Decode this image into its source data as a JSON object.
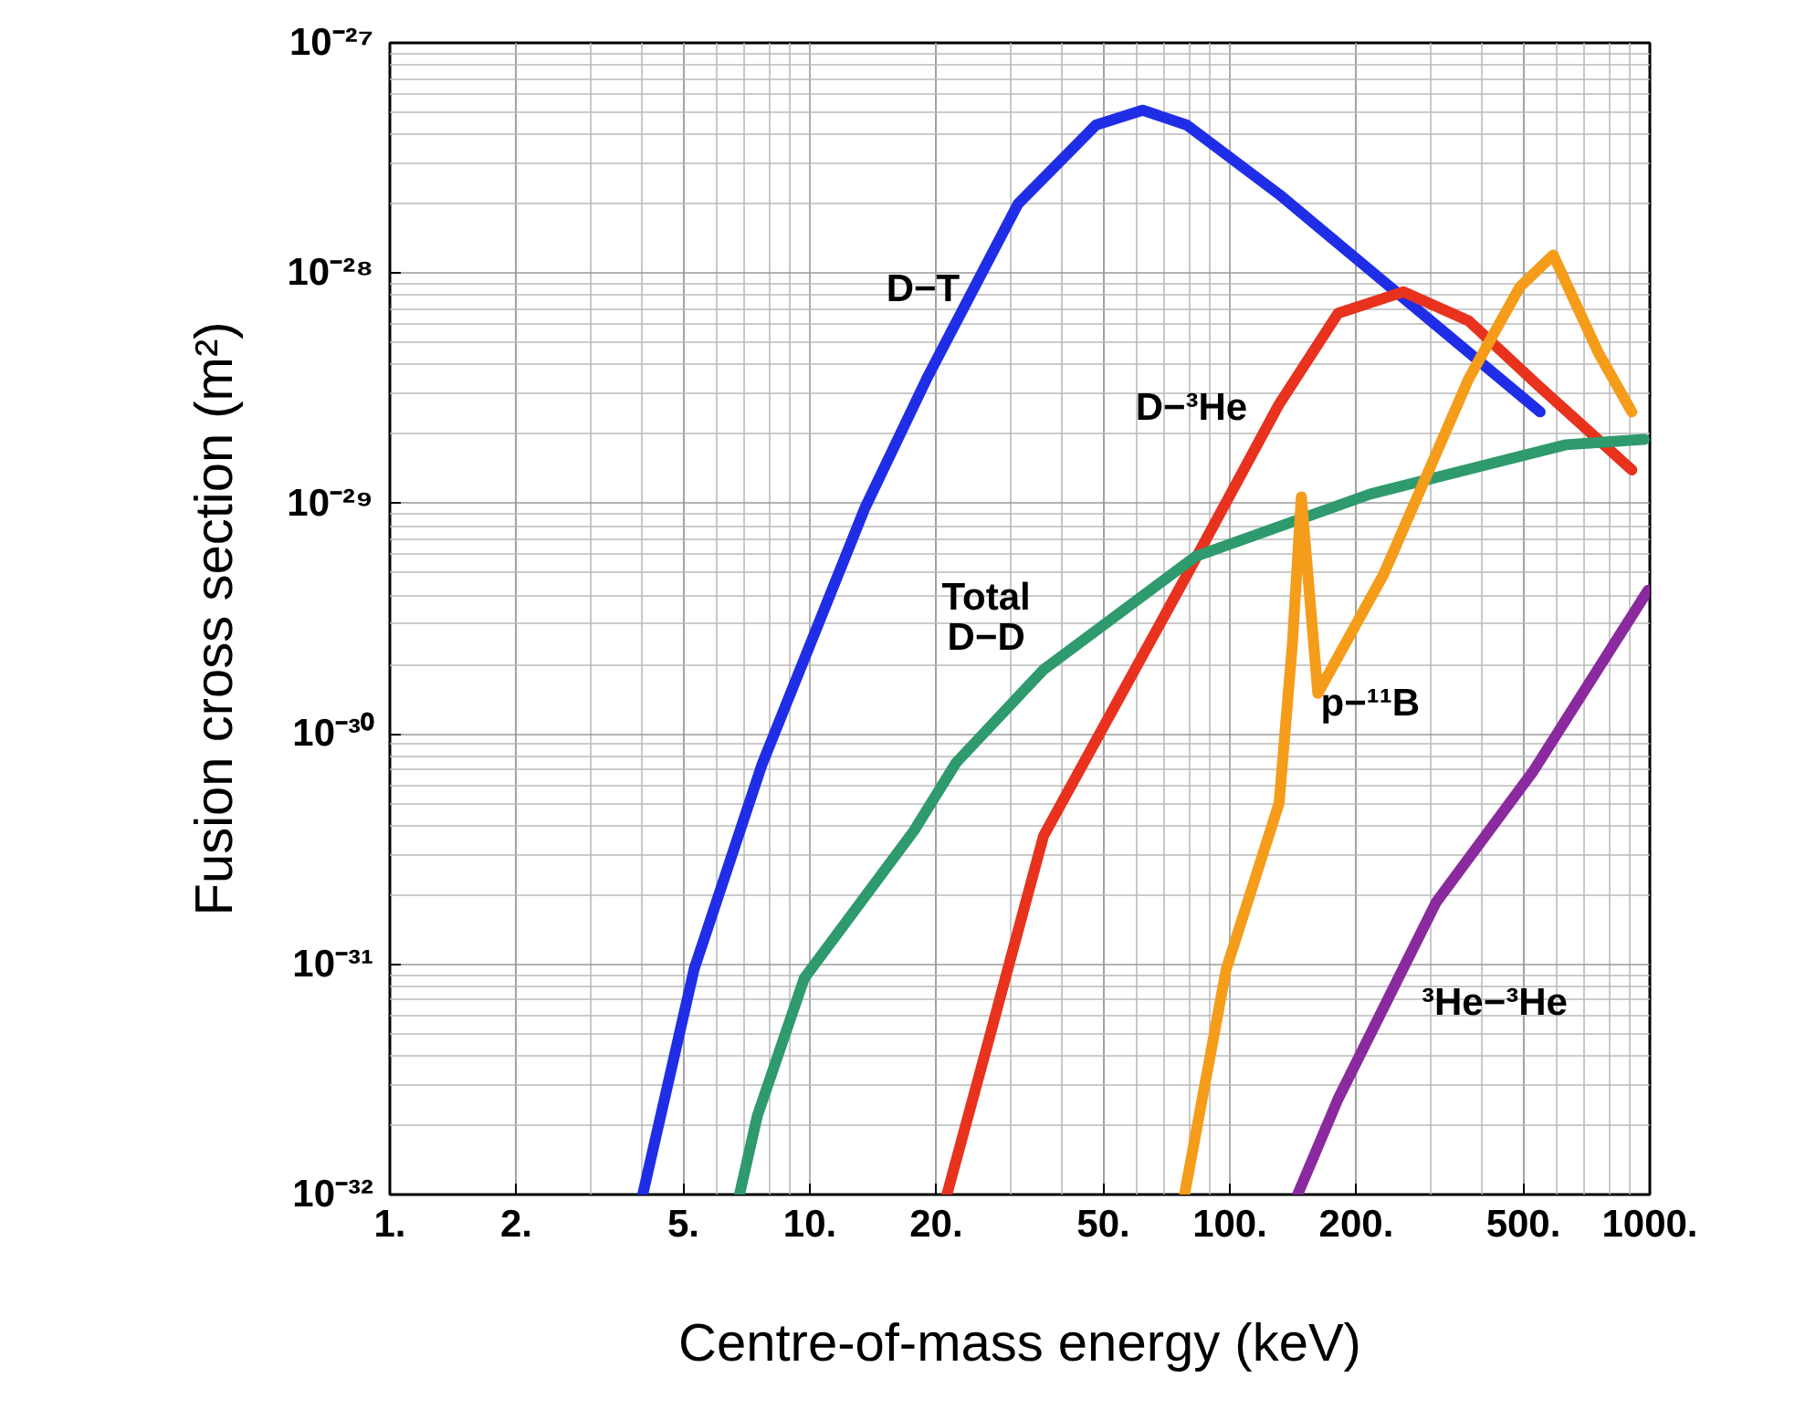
{
  "chart_data": {
    "type": "line",
    "xlabel": "Centre-of-mass energy (keV)",
    "ylabel": "Fusion cross section (m²)",
    "log": "xy",
    "grid": true,
    "marker": "none",
    "line_style": "solid",
    "xlim": [
      1,
      1000
    ],
    "ylim": [
      1e-32,
      1e-27
    ],
    "xticks": [
      {
        "value": 1,
        "label": "1."
      },
      {
        "value": 2,
        "label": "2."
      },
      {
        "value": 5,
        "label": "5."
      },
      {
        "value": 10,
        "label": "10."
      },
      {
        "value": 20,
        "label": "20."
      },
      {
        "value": 50,
        "label": "50."
      },
      {
        "value": 100,
        "label": "100."
      },
      {
        "value": 200,
        "label": "200."
      },
      {
        "value": 500,
        "label": "500."
      },
      {
        "value": 1000,
        "label": "1000."
      }
    ],
    "yticks": [
      {
        "value": 1e-32,
        "label": "10⁻³²"
      },
      {
        "value": 1e-31,
        "label": "10⁻³¹"
      },
      {
        "value": 1e-30,
        "label": "10⁻³⁰"
      },
      {
        "value": 1e-29,
        "label": "10⁻²⁹"
      },
      {
        "value": 1e-28,
        "label": "10⁻²⁸"
      },
      {
        "value": 1e-27,
        "label": "10⁻²⁷"
      }
    ],
    "series": [
      {
        "name": "D−T",
        "color": "#1f2ee6",
        "x": [
          4.0,
          5.3,
          7.7,
          13.5,
          19,
          31.3,
          48,
          62,
          79,
          131,
          548
        ],
        "values": [
          1e-32,
          9.5e-32,
          7.4e-31,
          9.5e-30,
          3.5e-29,
          2e-28,
          4.4e-28,
          5.1e-28,
          4.4e-28,
          2.2e-28,
          2.5e-29
        ]
      },
      {
        "name": "D−³He",
        "color": "#e8321e",
        "x": [
          21.2,
          27,
          36,
          79,
          131,
          181,
          259,
          371,
          548,
          906
        ],
        "values": [
          1e-32,
          5.1e-32,
          3.6e-31,
          4.9e-30,
          2.7e-29,
          6.7e-29,
          8.3e-29,
          6.2e-29,
          3.2e-29,
          1.4e-29
        ]
      },
      {
        "name": "Total D−D",
        "color": "#2e9a6e",
        "x": [
          6.8,
          7.5,
          9.7,
          17.7,
          22.3,
          36,
          83,
          216,
          631,
          970
        ],
        "values": [
          1e-32,
          2.2e-32,
          8.7e-32,
          3.8e-31,
          7.5e-31,
          1.9e-30,
          5.9e-30,
          1.1e-29,
          1.8e-29,
          1.9e-29
        ]
      },
      {
        "name": "p−¹¹B",
        "color": "#f59c1a",
        "x": [
          78,
          98,
          131,
          141,
          148,
          162,
          232,
          371,
          490,
          589,
          755,
          906
        ],
        "values": [
          1e-32,
          9.5e-32,
          5e-31,
          2.5e-30,
          1.07e-29,
          1.5e-30,
          4.9e-30,
          3.5e-29,
          8.7e-29,
          1.2e-28,
          4.5e-29,
          2.5e-29
        ]
      },
      {
        "name": "³He−³He",
        "color": "#8a2a9e",
        "x": [
          145,
          181,
          310,
          528,
          990
        ],
        "values": [
          1e-32,
          2.6e-32,
          1.86e-31,
          6.9e-31,
          4.2e-30
        ]
      }
    ]
  }
}
